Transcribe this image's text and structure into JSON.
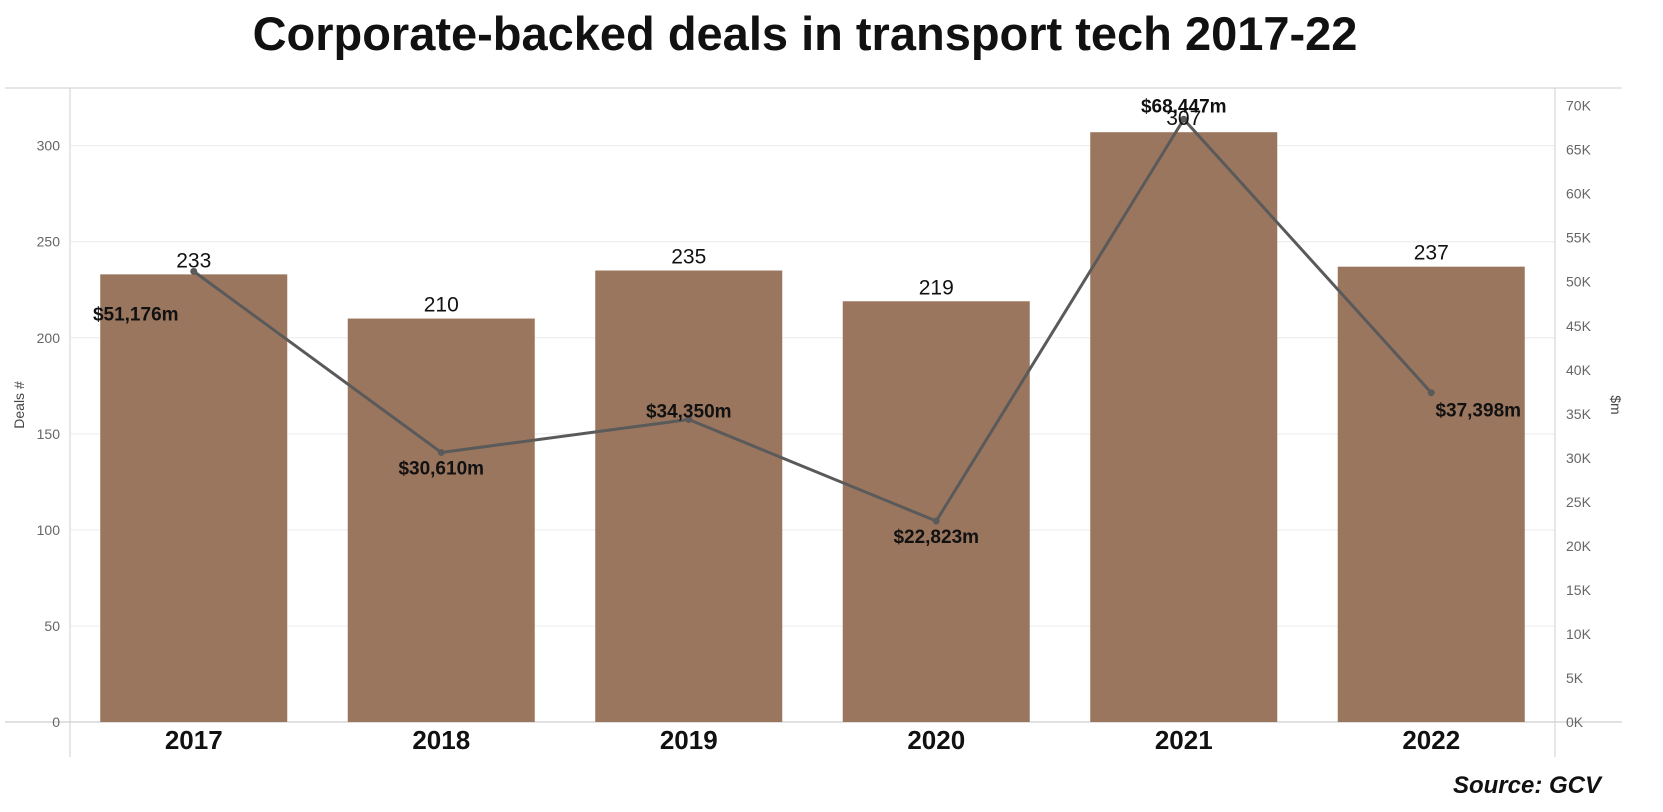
{
  "chart_data": {
    "type": "bar",
    "title": "Corporate-backed deals in transport tech 2017-22",
    "categories": [
      "2017",
      "2018",
      "2019",
      "2020",
      "2021",
      "2022"
    ],
    "series": [
      {
        "name": "",
        "kind": "bar",
        "axis": "left",
        "values": [
          233,
          210,
          235,
          219,
          307,
          237
        ],
        "labels": [
          "233",
          "210",
          "235",
          "219",
          "307",
          "237"
        ]
      },
      {
        "name": "",
        "kind": "line",
        "axis": "right",
        "values": [
          51176,
          30610,
          34350,
          22823,
          68447,
          37398
        ],
        "labels": [
          "$51,176m",
          "$30,610m",
          "$34,350m",
          "$22,823m",
          "$68,447m",
          "$37,398m"
        ]
      }
    ],
    "ylabel": "Deals #",
    "ylim": [
      0,
      330
    ],
    "yticks": [
      0,
      50,
      100,
      150,
      200,
      250,
      300
    ],
    "ytick_labels": [
      "0",
      "50",
      "100",
      "150",
      "200",
      "250",
      "300"
    ],
    "y2label": "$m",
    "y2lim": [
      0,
      72000
    ],
    "y2ticks": [
      0,
      5000,
      10000,
      15000,
      20000,
      25000,
      30000,
      35000,
      40000,
      45000,
      50000,
      55000,
      60000,
      65000,
      70000
    ],
    "y2tick_labels": [
      "0K",
      "5K",
      "10K",
      "15K",
      "20K",
      "25K",
      "30K",
      "35K",
      "40K",
      "45K",
      "50K",
      "55K",
      "60K",
      "65K",
      "70K"
    ],
    "grid": true,
    "legend": "none"
  },
  "source": "Source: GCV",
  "colors": {
    "bar": "#9b765f",
    "line": "#5a5a5a",
    "grid": "#ececec",
    "axis": "#cfcfcf",
    "tick_text": "#666666"
  }
}
